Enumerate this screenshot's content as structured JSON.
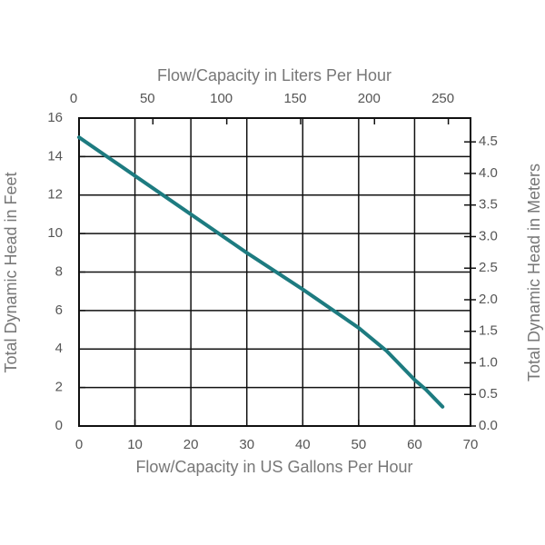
{
  "chart_data": {
    "type": "line",
    "x2label": "Flow/Capacity in Liters Per Hour",
    "xlabel": "Flow/Capacity in US Gallons Per Hour",
    "ylabel": "Total Dynamic Head in Feet",
    "y2label": "Total Dynamic Head in Meters",
    "x": [
      0,
      10,
      20,
      30,
      40,
      50,
      55,
      60,
      62,
      65
    ],
    "series": [
      {
        "color": "#1d7b80",
        "values": [
          15,
          13,
          11,
          9,
          7.1,
          5.1,
          3.9,
          2.4,
          1.9,
          1
        ]
      }
    ],
    "xlim": [
      0,
      70
    ],
    "xticks": [
      0,
      10,
      20,
      30,
      40,
      50,
      60,
      70
    ],
    "ylim": [
      0,
      16
    ],
    "yticks": [
      0,
      2,
      4,
      6,
      8,
      10,
      12,
      14,
      16
    ],
    "x2lim": [
      0,
      265
    ],
    "x2ticks": [
      0,
      50,
      100,
      150,
      200,
      250
    ],
    "y2lim": [
      0,
      4.877
    ],
    "y2ticks": [
      {
        "value": 0,
        "label": "0.0"
      },
      0.5,
      {
        "value": 1,
        "label": "1.0"
      },
      1.5,
      {
        "value": 2,
        "label": "2.0"
      },
      2.5,
      {
        "value": 3,
        "label": "3.0"
      },
      3.5,
      {
        "value": 4,
        "label": "4.0"
      },
      4.5
    ],
    "grid": true
  }
}
